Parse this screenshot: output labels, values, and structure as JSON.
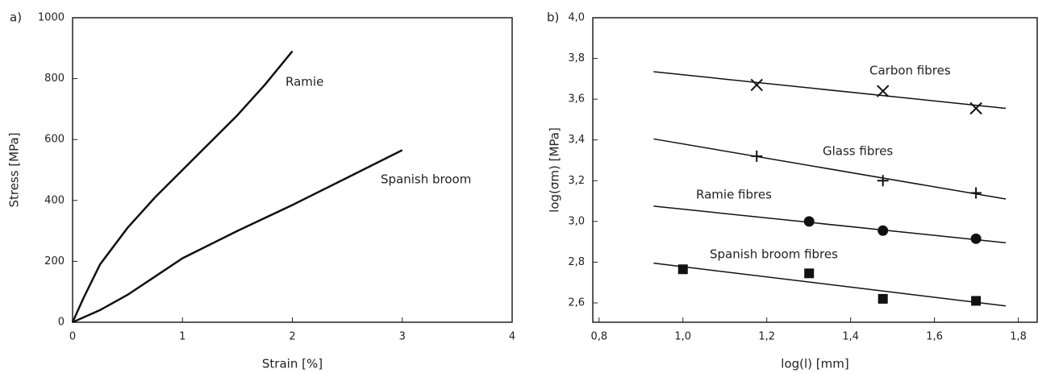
{
  "chart_data": [
    {
      "type": "line",
      "panel": "a)",
      "xlabel": "Strain [%]",
      "ylabel": "Stress [MPa]",
      "xlim": [
        0,
        4
      ],
      "xticks": [
        0,
        1,
        2,
        3,
        4
      ],
      "ylim": [
        0,
        1000
      ],
      "yticks": [
        0,
        200,
        400,
        600,
        800,
        1000
      ],
      "series": [
        {
          "name": "Ramie",
          "color": "#111111",
          "x": [
            0,
            0.1,
            0.25,
            0.5,
            0.75,
            1,
            1.25,
            1.5,
            1.75,
            2
          ],
          "values": [
            0,
            80,
            190,
            310,
            410,
            500,
            590,
            680,
            780,
            890
          ]
        },
        {
          "name": "Spanish broom",
          "color": "#111111",
          "x": [
            0,
            0.25,
            0.5,
            0.75,
            1,
            1.5,
            2,
            2.5,
            3
          ],
          "values": [
            0,
            40,
            90,
            150,
            210,
            300,
            385,
            475,
            565
          ]
        }
      ]
    },
    {
      "type": "scatter",
      "panel": "b)",
      "xlabel": "log(l) [mm]",
      "ylabel": "log(σm) [MPa]",
      "xlim": [
        0.785,
        1.845
      ],
      "xticks": [
        {
          "value": 0.8,
          "label": "0,8"
        },
        {
          "value": 1.0,
          "label": "1,0"
        },
        {
          "value": 1.2,
          "label": "1,2"
        },
        {
          "value": 1.4,
          "label": "1,4"
        },
        {
          "value": 1.6,
          "label": "1,6"
        },
        {
          "value": 1.8,
          "label": "1,8"
        }
      ],
      "ylim": [
        2.505,
        4.0
      ],
      "yticks": [
        {
          "value": 2.6,
          "label": "2,6"
        },
        {
          "value": 2.8,
          "label": "2,8"
        },
        {
          "value": 3.0,
          "label": "3,0"
        },
        {
          "value": 3.2,
          "label": "3,2"
        },
        {
          "value": 3.4,
          "label": "3,4"
        },
        {
          "value": 3.6,
          "label": "3,6"
        },
        {
          "value": 3.8,
          "label": "3,8"
        },
        {
          "value": 4.0,
          "label": "4,0"
        }
      ],
      "series": [
        {
          "name": "Carbon fibres",
          "marker": "x",
          "color": "#111111",
          "x": [
            1.176,
            1.477,
            1.699
          ],
          "values": [
            3.67,
            3.64,
            3.555
          ],
          "fit_x": [
            0.93,
            1.77
          ],
          "fit_y": [
            3.735,
            3.555
          ]
        },
        {
          "name": "Glass fibres",
          "marker": "plus",
          "color": "#111111",
          "x": [
            1.176,
            1.477,
            1.699
          ],
          "values": [
            3.32,
            3.2,
            3.14
          ],
          "fit_x": [
            0.93,
            1.77
          ],
          "fit_y": [
            3.405,
            3.11
          ]
        },
        {
          "name": "Ramie fibres",
          "marker": "circle",
          "color": "#111111",
          "x": [
            1.301,
            1.477,
            1.699
          ],
          "values": [
            3.0,
            2.955,
            2.915
          ],
          "fit_x": [
            0.93,
            1.77
          ],
          "fit_y": [
            3.075,
            2.895
          ]
        },
        {
          "name": "Spanish broom fibres",
          "marker": "square",
          "color": "#111111",
          "x": [
            1.0,
            1.301,
            1.477,
            1.699
          ],
          "values": [
            2.765,
            2.745,
            2.62,
            2.61
          ],
          "fit_x": [
            0.93,
            1.77
          ],
          "fit_y": [
            2.795,
            2.585
          ]
        }
      ]
    }
  ]
}
